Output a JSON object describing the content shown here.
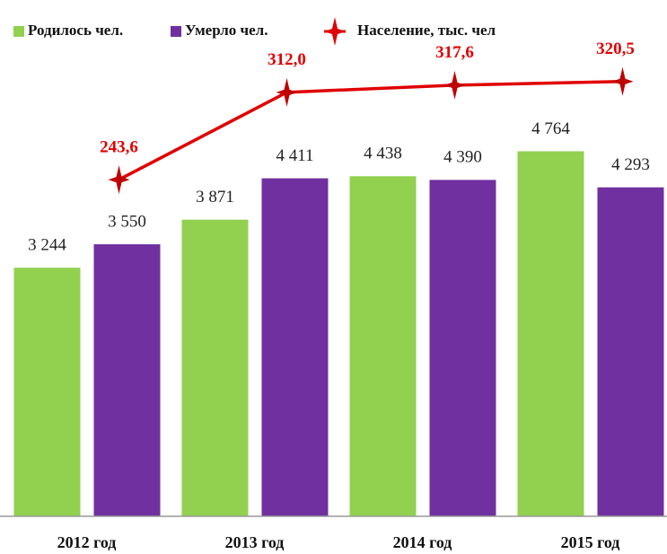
{
  "chart_data": {
    "type": "bar-line",
    "categories": [
      "2012 год",
      "2013 год",
      "2014 год",
      "2015 год"
    ],
    "series": [
      {
        "name": "Родилось чел.",
        "color": "#92d050",
        "values": [
          3244,
          3871,
          4438,
          4764
        ],
        "value_labels": [
          "3 244",
          "3 871",
          "4 438",
          "4 764"
        ]
      },
      {
        "name": "Умерло чел.",
        "color": "#7030a0",
        "values": [
          3550,
          4411,
          4390,
          4293
        ],
        "value_labels": [
          "3 550",
          "4 411",
          "4 390",
          "4 293"
        ]
      },
      {
        "name": "Население, тыс. чел",
        "color": "#e00000",
        "axis": "y2",
        "values": [
          243.6,
          312.0,
          317.6,
          320.5
        ],
        "value_labels": [
          "243,6",
          "312,0",
          "317,6",
          "320,5"
        ]
      }
    ],
    "ylim": [
      0,
      6000
    ],
    "y2lim": [
      -20,
      340
    ]
  }
}
